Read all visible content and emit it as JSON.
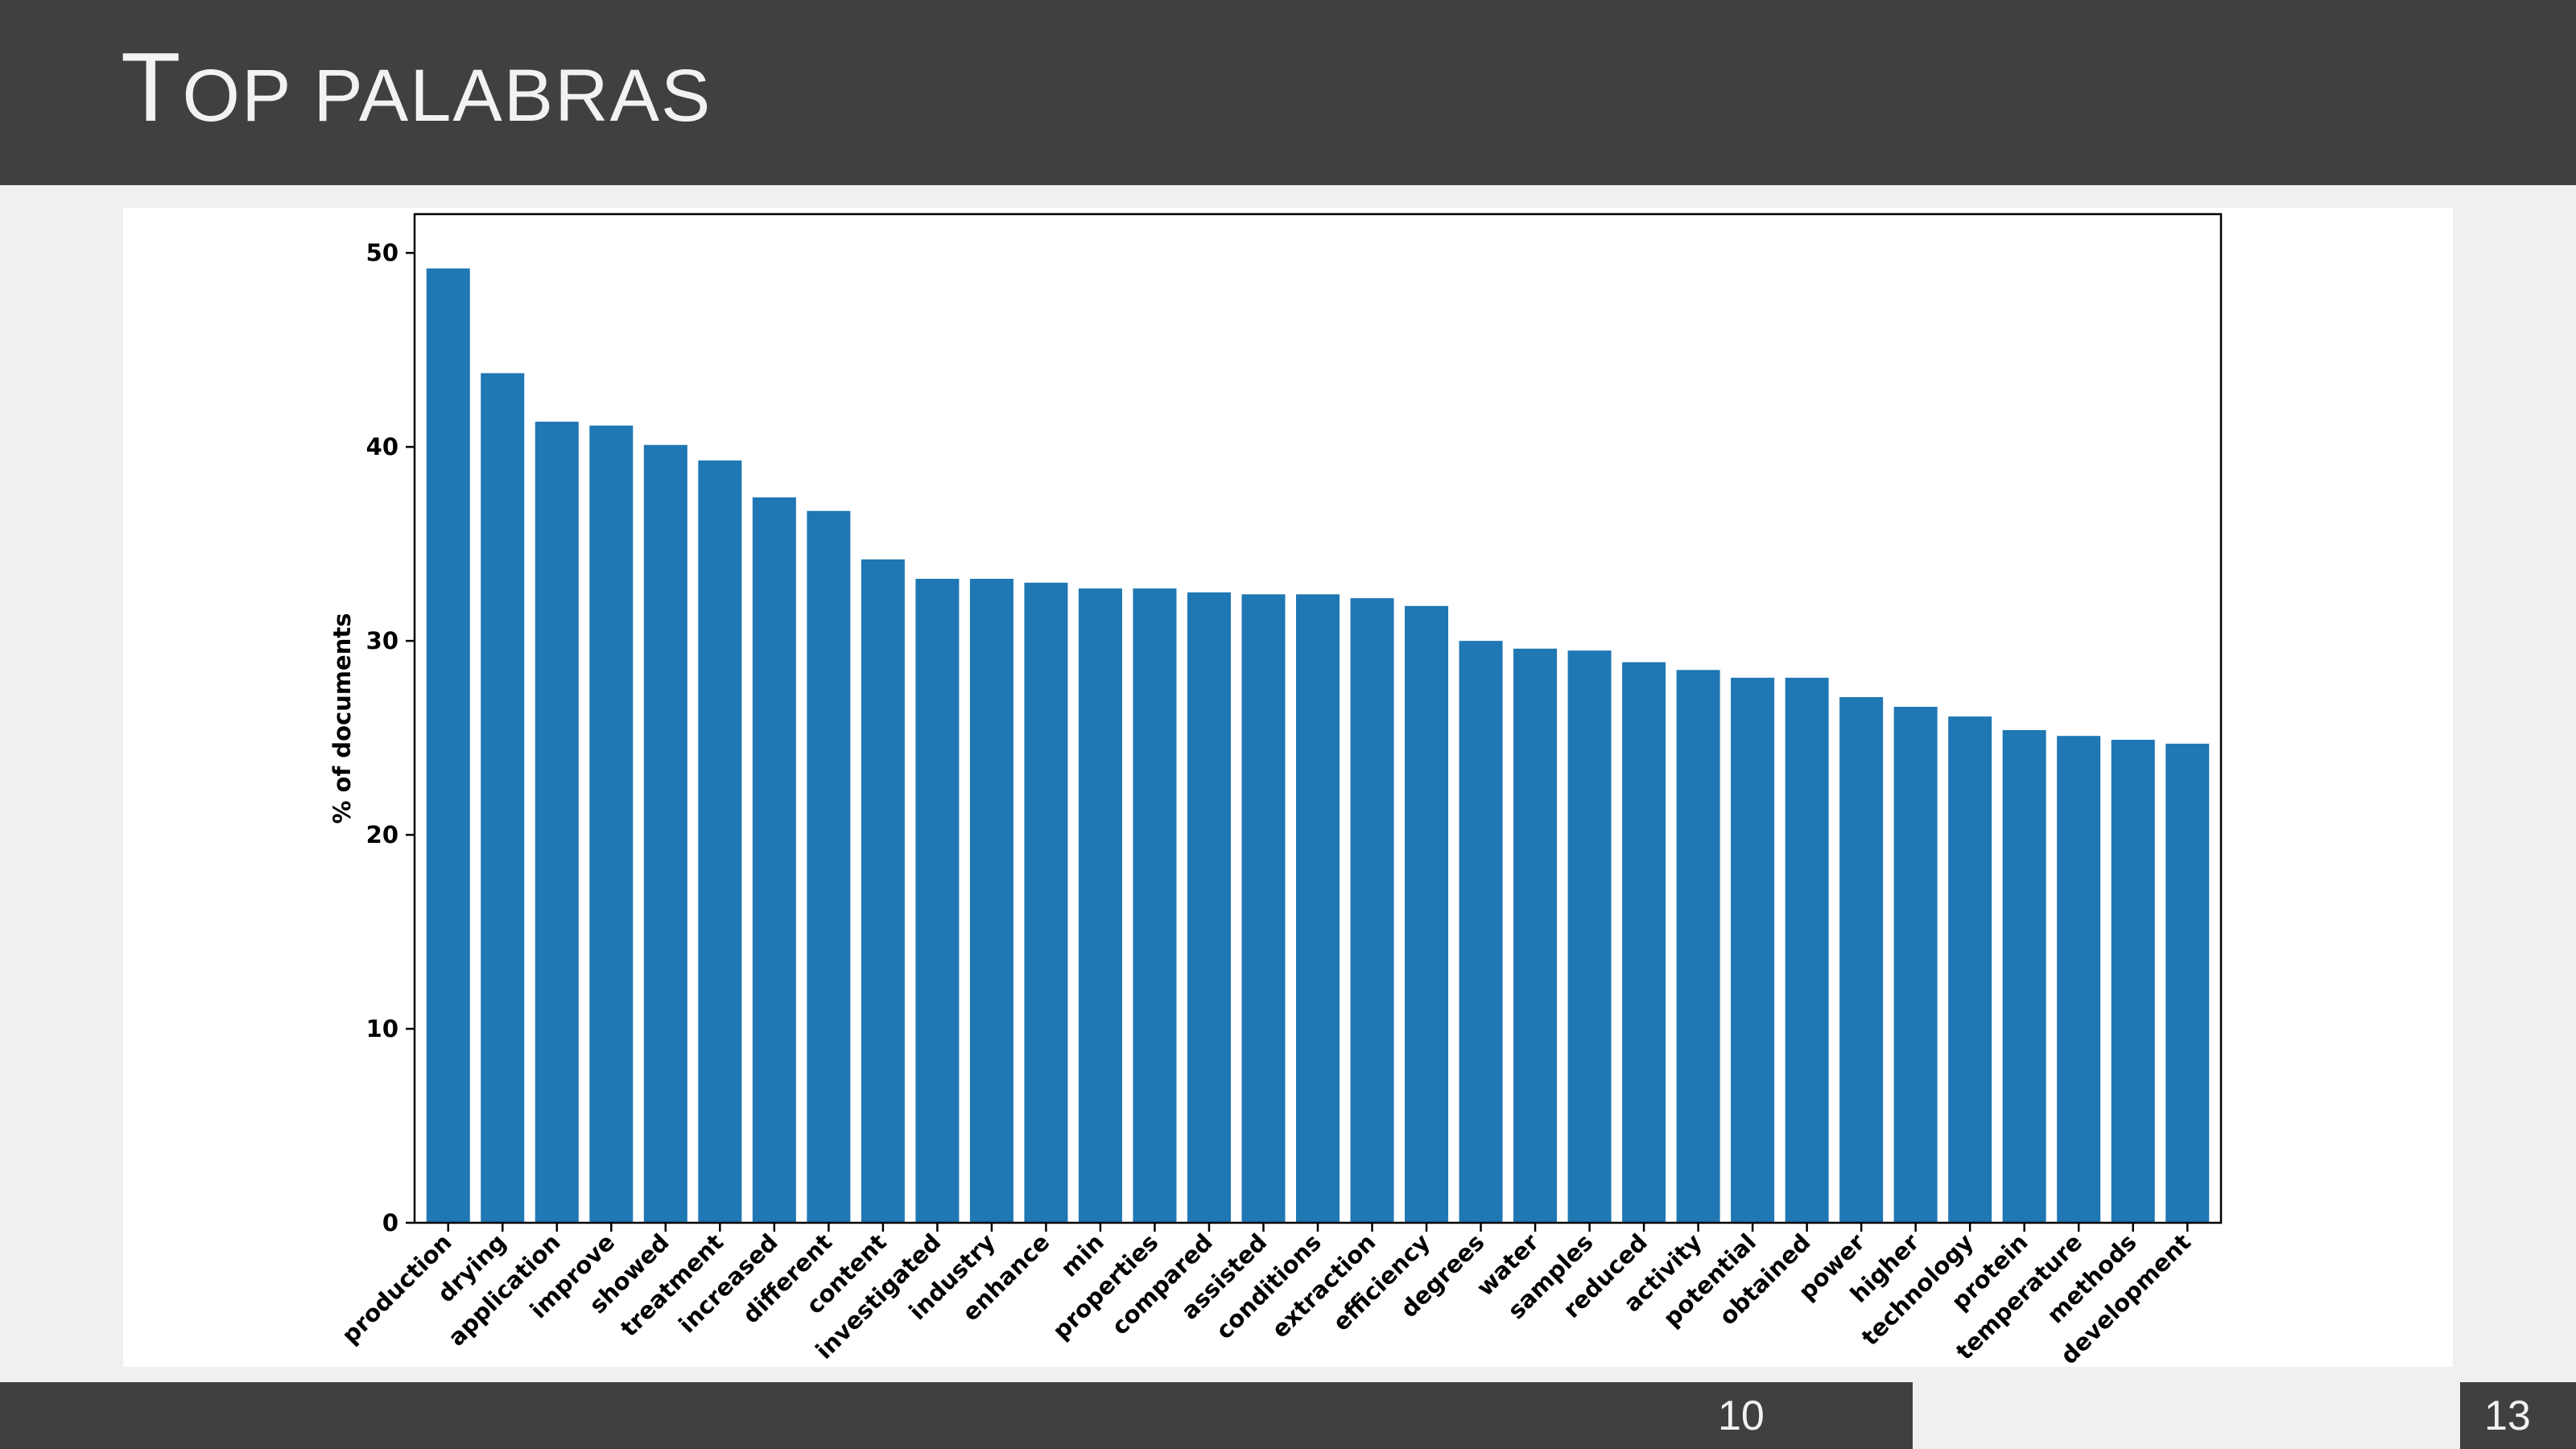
{
  "slide": {
    "title_first": "T",
    "title_rest": "OP PALABRAS",
    "footer_left_number": "10",
    "footer_right_number": "13"
  },
  "chart_data": {
    "type": "bar",
    "title": "",
    "xlabel": "",
    "ylabel": "% of documents",
    "ylim": [
      0,
      52
    ],
    "yticks": [
      0,
      10,
      20,
      30,
      40,
      50
    ],
    "grid": false,
    "color": "#1f77b4",
    "categories": [
      "production",
      "drying",
      "application",
      "improve",
      "showed",
      "treatment",
      "increased",
      "different",
      "content",
      "investigated",
      "industry",
      "enhance",
      "min",
      "properties",
      "compared",
      "assisted",
      "conditions",
      "extraction",
      "efficiency",
      "degrees",
      "water",
      "samples",
      "reduced",
      "activity",
      "potential",
      "obtained",
      "power",
      "higher",
      "technology",
      "protein",
      "temperature",
      "methods",
      "development"
    ],
    "values": [
      49.2,
      43.8,
      41.3,
      41.1,
      40.1,
      39.3,
      37.4,
      36.7,
      34.2,
      33.2,
      33.2,
      33.0,
      32.7,
      32.7,
      32.5,
      32.4,
      32.4,
      32.2,
      31.8,
      30.0,
      29.6,
      29.5,
      28.9,
      28.5,
      28.1,
      28.1,
      27.1,
      26.6,
      26.1,
      25.4,
      25.1,
      24.9,
      24.7
    ]
  }
}
